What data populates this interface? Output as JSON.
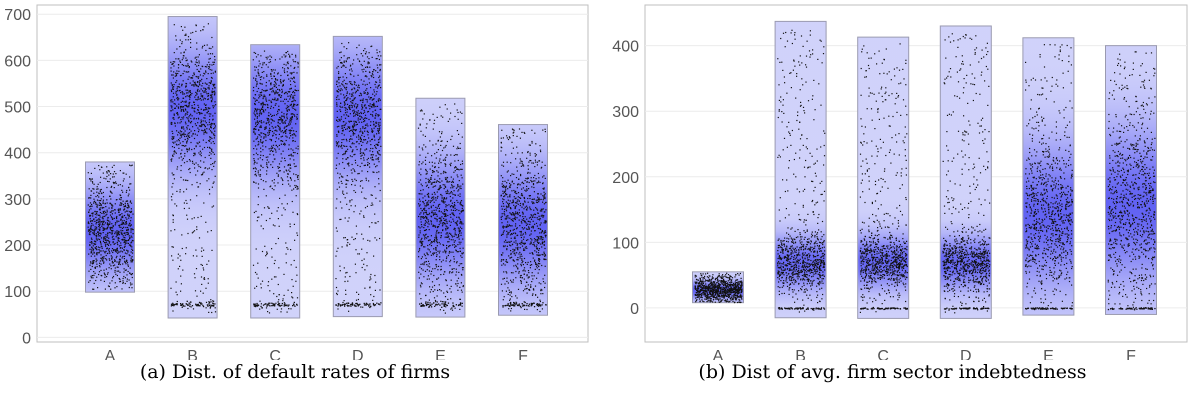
{
  "chart_data": [
    {
      "type": "strip",
      "caption": "(a) Dist. of default rates of firms",
      "categories": [
        "A",
        "B",
        "C",
        "D",
        "E",
        "F"
      ],
      "ylim": [
        -10,
        720
      ],
      "yticks": [
        0,
        100,
        200,
        300,
        400,
        500,
        600,
        700
      ],
      "grid": true,
      "colors": {
        "box_fill": "#d6d8fb",
        "box_stroke": "#9a9ab0",
        "density": "#3d3df0",
        "points": "#111111"
      },
      "boxes": [
        {
          "category": "A",
          "min": 98,
          "max": 380,
          "center": 230,
          "spread": 55,
          "floor_band": null
        },
        {
          "category": "B",
          "min": 42,
          "max": 695,
          "center": 495,
          "spread": 75,
          "floor_band": 72
        },
        {
          "category": "C",
          "min": 42,
          "max": 634,
          "center": 480,
          "spread": 80,
          "floor_band": 72
        },
        {
          "category": "D",
          "min": 45,
          "max": 652,
          "center": 480,
          "spread": 80,
          "floor_band": 72
        },
        {
          "category": "E",
          "min": 44,
          "max": 518,
          "center": 255,
          "spread": 75,
          "floor_band": 72
        },
        {
          "category": "F",
          "min": 48,
          "max": 461,
          "center": 245,
          "spread": 75,
          "floor_band": 72
        }
      ]
    },
    {
      "type": "strip",
      "caption": "(b) Dist of avg. firm sector indebtedness",
      "categories": [
        "A",
        "B",
        "C",
        "D",
        "E",
        "F"
      ],
      "ylim": [
        -52,
        462
      ],
      "yticks": [
        0,
        100,
        200,
        300,
        400
      ],
      "grid": true,
      "colors": {
        "box_fill": "#d6d8fb",
        "box_stroke": "#9a9ab0",
        "density": "#3d3df0",
        "points": "#111111"
      },
      "boxes": [
        {
          "category": "A",
          "min": 8,
          "max": 55,
          "center": 27,
          "spread": 8,
          "floor_band": null
        },
        {
          "category": "B",
          "min": -15,
          "max": 437,
          "center": 68,
          "spread": 22,
          "floor_band": 0
        },
        {
          "category": "C",
          "min": -16,
          "max": 413,
          "center": 70,
          "spread": 22,
          "floor_band": 0
        },
        {
          "category": "D",
          "min": -16,
          "max": 430,
          "center": 68,
          "spread": 22,
          "floor_band": 0
        },
        {
          "category": "E",
          "min": -11,
          "max": 412,
          "center": 140,
          "spread": 60,
          "floor_band": 0
        },
        {
          "category": "F",
          "min": -10,
          "max": 400,
          "center": 155,
          "spread": 65,
          "floor_band": 0
        }
      ]
    }
  ]
}
